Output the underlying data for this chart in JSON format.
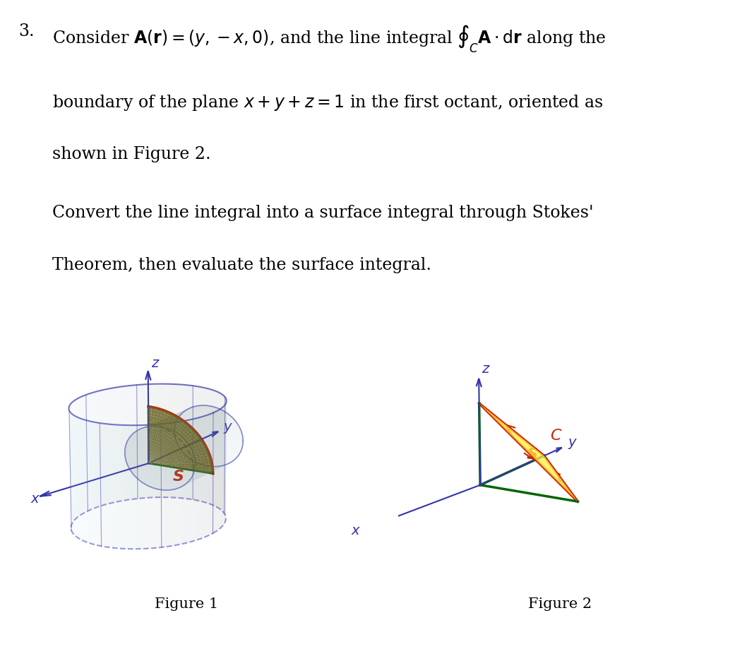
{
  "bg_color": "#ffffff",
  "text_color": "#000000",
  "axis_color": "#3333aa",
  "green_color": "#006600",
  "red_color": "#cc2200",
  "yellow_color": "#ffee44",
  "title_number": "3.",
  "line1": "Consider $\\mathbf{A}(\\mathbf{r}) = (y, -x, 0)$, and the line integral $\\oint_C \\mathbf{A} \\cdot d\\mathbf{r}$ along the",
  "line2": "boundary of the plane $x + y + z = 1$ in the first octant, oriented as",
  "line3": "shown in Figure 2.",
  "line4": "Convert the line integral into a surface integral through Stokes'",
  "line5": "Theorem, then evaluate the surface integral.",
  "fig1_caption": "Figure 1",
  "fig2_caption": "Figure 2",
  "figsize": [
    10.58,
    9.2
  ],
  "dpi": 100
}
